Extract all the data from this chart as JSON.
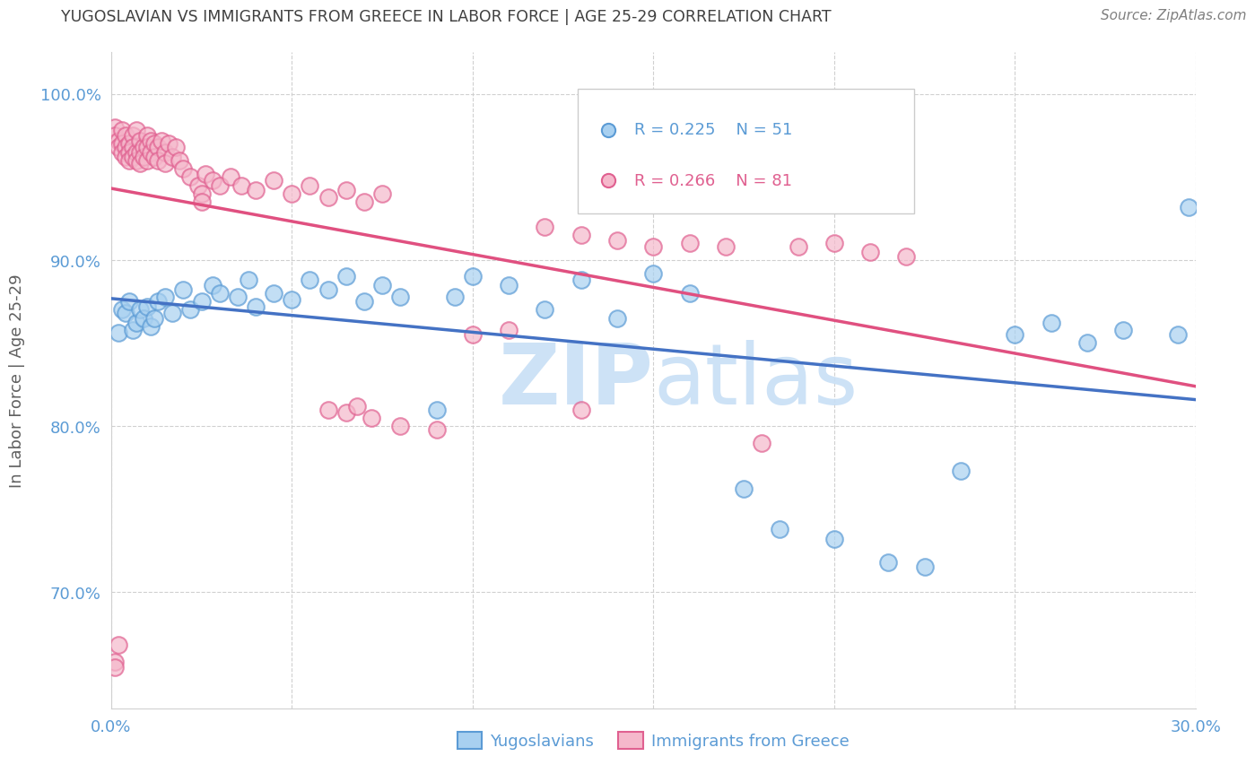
{
  "title": "YUGOSLAVIAN VS IMMIGRANTS FROM GREECE IN LABOR FORCE | AGE 25-29 CORRELATION CHART",
  "source": "Source: ZipAtlas.com",
  "ylabel": "In Labor Force | Age 25-29",
  "x_min": 0.0,
  "x_max": 0.3,
  "y_min": 0.63,
  "y_max": 1.025,
  "y_ticks": [
    0.7,
    0.8,
    0.9,
    1.0
  ],
  "y_tick_labels": [
    "70.0%",
    "80.0%",
    "90.0%",
    "100.0%"
  ],
  "x_ticks": [
    0.0,
    0.05,
    0.1,
    0.15,
    0.2,
    0.25,
    0.3
  ],
  "x_tick_labels": [
    "0.0%",
    "",
    "",
    "",
    "",
    "",
    "30.0%"
  ],
  "legend_r_blue": "R = 0.225",
  "legend_n_blue": "N = 51",
  "legend_r_pink": "R = 0.266",
  "legend_n_pink": "N = 81",
  "blue_fill": "#a8d0f0",
  "blue_edge": "#5b9bd5",
  "pink_fill": "#f5b8cb",
  "pink_edge": "#e06090",
  "blue_line": "#4472c4",
  "pink_line": "#e05080",
  "axis_tick_color": "#5b9bd5",
  "title_color": "#404040",
  "source_color": "#808080",
  "ylabel_color": "#606060",
  "watermark_color": "#c8dff5",
  "grid_color": "#d0d0d0",
  "blue_x": [
    0.002,
    0.003,
    0.004,
    0.005,
    0.006,
    0.007,
    0.008,
    0.009,
    0.01,
    0.011,
    0.012,
    0.013,
    0.015,
    0.017,
    0.02,
    0.022,
    0.025,
    0.028,
    0.03,
    0.035,
    0.038,
    0.04,
    0.045,
    0.05,
    0.055,
    0.06,
    0.065,
    0.07,
    0.075,
    0.08,
    0.09,
    0.095,
    0.1,
    0.11,
    0.12,
    0.13,
    0.14,
    0.15,
    0.16,
    0.175,
    0.185,
    0.2,
    0.215,
    0.225,
    0.235,
    0.25,
    0.26,
    0.27,
    0.28,
    0.295,
    0.298
  ],
  "blue_y": [
    0.856,
    0.87,
    0.868,
    0.875,
    0.858,
    0.862,
    0.87,
    0.865,
    0.872,
    0.86,
    0.865,
    0.875,
    0.878,
    0.868,
    0.882,
    0.87,
    0.875,
    0.885,
    0.88,
    0.878,
    0.888,
    0.872,
    0.88,
    0.876,
    0.888,
    0.882,
    0.89,
    0.875,
    0.885,
    0.878,
    0.81,
    0.878,
    0.89,
    0.885,
    0.87,
    0.888,
    0.865,
    0.892,
    0.88,
    0.762,
    0.738,
    0.732,
    0.718,
    0.715,
    0.773,
    0.855,
    0.862,
    0.85,
    0.858,
    0.855,
    0.932
  ],
  "pink_x": [
    0.001,
    0.001,
    0.002,
    0.002,
    0.003,
    0.003,
    0.003,
    0.004,
    0.004,
    0.004,
    0.005,
    0.005,
    0.005,
    0.006,
    0.006,
    0.006,
    0.007,
    0.007,
    0.007,
    0.008,
    0.008,
    0.008,
    0.009,
    0.009,
    0.01,
    0.01,
    0.01,
    0.011,
    0.011,
    0.012,
    0.012,
    0.013,
    0.013,
    0.014,
    0.015,
    0.015,
    0.016,
    0.017,
    0.018,
    0.019,
    0.02,
    0.022,
    0.024,
    0.026,
    0.028,
    0.03,
    0.033,
    0.036,
    0.04,
    0.045,
    0.05,
    0.055,
    0.06,
    0.065,
    0.07,
    0.075,
    0.08,
    0.09,
    0.1,
    0.11,
    0.12,
    0.13,
    0.14,
    0.15,
    0.16,
    0.17,
    0.18,
    0.19,
    0.2,
    0.21,
    0.22,
    0.001,
    0.001,
    0.002,
    0.13,
    0.025,
    0.025,
    0.06,
    0.065,
    0.068,
    0.072
  ],
  "pink_y": [
    0.98,
    0.975,
    0.972,
    0.968,
    0.978,
    0.97,
    0.965,
    0.975,
    0.968,
    0.962,
    0.97,
    0.965,
    0.96,
    0.975,
    0.968,
    0.962,
    0.978,
    0.965,
    0.96,
    0.972,
    0.965,
    0.958,
    0.968,
    0.962,
    0.975,
    0.968,
    0.96,
    0.972,
    0.965,
    0.97,
    0.962,
    0.968,
    0.96,
    0.972,
    0.965,
    0.958,
    0.97,
    0.962,
    0.968,
    0.96,
    0.955,
    0.95,
    0.945,
    0.952,
    0.948,
    0.945,
    0.95,
    0.945,
    0.942,
    0.948,
    0.94,
    0.945,
    0.938,
    0.942,
    0.935,
    0.94,
    0.8,
    0.798,
    0.855,
    0.858,
    0.92,
    0.915,
    0.912,
    0.908,
    0.91,
    0.908,
    0.79,
    0.908,
    0.91,
    0.905,
    0.902,
    0.658,
    0.655,
    0.668,
    0.81,
    0.94,
    0.935,
    0.81,
    0.808,
    0.812,
    0.805
  ]
}
